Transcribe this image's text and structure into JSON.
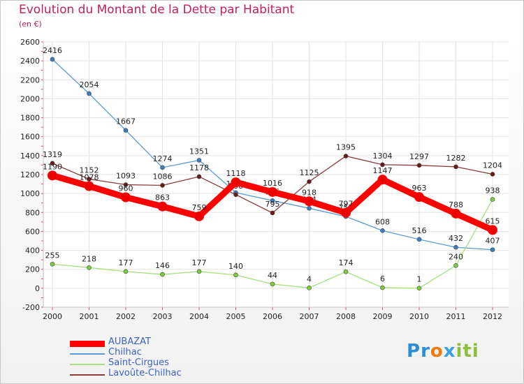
{
  "title": "Evolution du Montant de la Dette par Habitant",
  "subtitle": "(en €)",
  "brand": {
    "letters": [
      "P",
      "r",
      "o",
      "x",
      "i",
      "t",
      "i"
    ],
    "colors": [
      "#2a8fd6",
      "#2a8fd6",
      "#f07a10",
      "#3aa0e0",
      "#8cc03a",
      "#8cc03a",
      "#8cc03a"
    ]
  },
  "chart_data": {
    "type": "line",
    "title": "Evolution du Montant de la Dette par Habitant",
    "subtitle": "(en €)",
    "xlabel": "",
    "ylabel": "",
    "x": [
      "2000",
      "2001",
      "2002",
      "2003",
      "2004",
      "2005",
      "2006",
      "2007",
      "2008",
      "2009",
      "2010",
      "2011",
      "2012"
    ],
    "ylim": [
      -200,
      2600
    ],
    "yticks": [
      -200,
      0,
      200,
      400,
      600,
      800,
      1000,
      1200,
      1400,
      1600,
      1800,
      2000,
      2200,
      2400,
      2600
    ],
    "grid": true,
    "legend_position": "bottom-left",
    "series": [
      {
        "name": "Chilhac",
        "color": "#5b9bd5",
        "marker": "#3b7dc4",
        "width": "thin",
        "values": [
          2416,
          2054,
          1667,
          1274,
          1351,
          1009,
          925,
          844,
          757,
          608,
          516,
          432,
          407
        ]
      },
      {
        "name": "Saint-Cirgues",
        "color": "#a6e07a",
        "marker": "#7ccd3a",
        "width": "thin",
        "values": [
          255,
          218,
          177,
          146,
          177,
          140,
          44,
          4,
          174,
          6,
          1,
          240,
          938
        ]
      },
      {
        "name": "Lavoûte-Chilhac",
        "color": "#8b3a3a",
        "marker": "#6b1a1a",
        "width": "thin",
        "values": [
          1319,
          1152,
          1093,
          1086,
          1178,
          988,
          795,
          1125,
          1395,
          1304,
          1297,
          1282,
          1204
        ]
      },
      {
        "name": "AUBAZAT",
        "color": "#ff0000",
        "marker": "#ee0000",
        "width": "thick",
        "values": [
          1190,
          1078,
          960,
          863,
          759,
          1118,
          1016,
          918,
          797,
          1147,
          963,
          788,
          615
        ]
      }
    ],
    "legend_order": [
      "AUBAZAT",
      "Chilhac",
      "Saint-Cirgues",
      "Lavoûte-Chilhac"
    ]
  }
}
